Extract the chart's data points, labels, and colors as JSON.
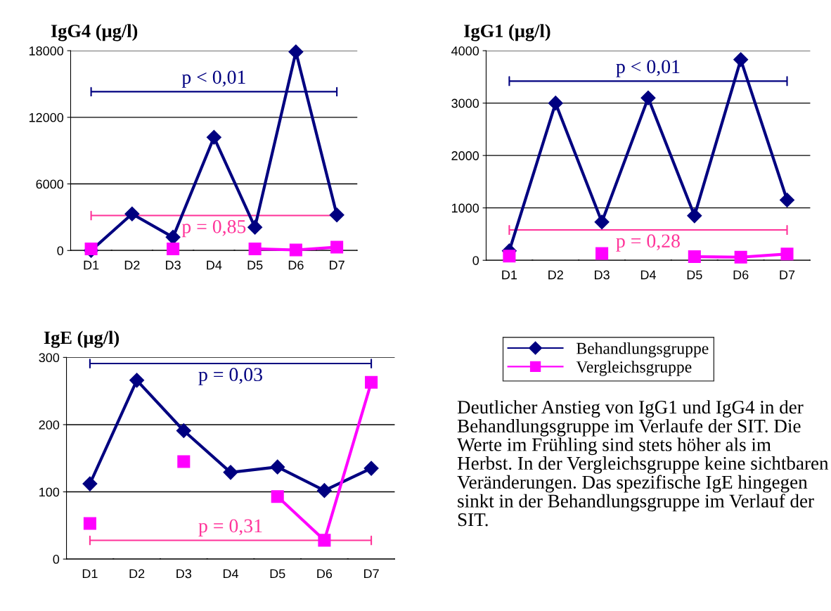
{
  "chart_data": [
    {
      "type": "line",
      "title": "IgG4 (µg/l)",
      "categories": [
        "D1",
        "D2",
        "D3",
        "D4",
        "D5",
        "D6",
        "D7"
      ],
      "ylim": [
        0,
        18000
      ],
      "yticks": [
        0,
        6000,
        12000,
        18000
      ],
      "grid": "y",
      "series": [
        {
          "color": "#000080",
          "marker": "diamond",
          "values": [
            0,
            3300,
            1200,
            10200,
            2100,
            17900,
            3200
          ]
        },
        {
          "color": "#ff00ff",
          "marker": "square",
          "values": [
            150,
            null,
            150,
            null,
            150,
            50,
            300
          ]
        }
      ],
      "annotations": [
        "p < 0,01",
        "p = 0,85"
      ]
    },
    {
      "type": "line",
      "title": "IgG1 (µg/l)",
      "categories": [
        "D1",
        "D2",
        "D3",
        "D4",
        "D5",
        "D6",
        "D7"
      ],
      "ylim": [
        0,
        4000
      ],
      "yticks": [
        0,
        1000,
        2000,
        3000,
        4000
      ],
      "grid": "y",
      "series": [
        {
          "color": "#000080",
          "marker": "diamond",
          "values": [
            180,
            3000,
            730,
            3100,
            850,
            3830,
            1150
          ]
        },
        {
          "color": "#ff00ff",
          "marker": "square",
          "values": [
            80,
            null,
            130,
            null,
            70,
            60,
            120
          ]
        }
      ],
      "annotations": [
        "p < 0,01",
        "p = 0,28"
      ]
    },
    {
      "type": "line",
      "title": "IgE (µg/l)",
      "categories": [
        "D1",
        "D2",
        "D3",
        "D4",
        "D5",
        "D6",
        "D7"
      ],
      "ylim": [
        0,
        300
      ],
      "yticks": [
        0,
        100,
        200,
        300
      ],
      "grid": "y",
      "legend": "right",
      "series": [
        {
          "name": "Behandlungsgruppe",
          "color": "#000080",
          "marker": "diamond",
          "values": [
            112,
            266,
            191,
            129,
            137,
            102,
            135
          ]
        },
        {
          "name": "Vergleichsgruppe",
          "color": "#ff00ff",
          "marker": "square",
          "values": [
            53,
            null,
            145,
            null,
            93,
            28,
            263
          ]
        }
      ],
      "annotations": [
        "p = 0,03",
        "p = 0,31",
        "Deutlicher Anstieg von IgG1 und IgG4 in der Behandlungsgruppe im Verlaufe der SIT. Die Werte im Frühling sind stets höher als im Herbst. In der Vergleichsgruppe keine sichtbaren Veränderungen. Das spezifische IgE hingegen sinkt in der Behandlungsgruppe im Verlauf der SIT."
      ]
    }
  ]
}
